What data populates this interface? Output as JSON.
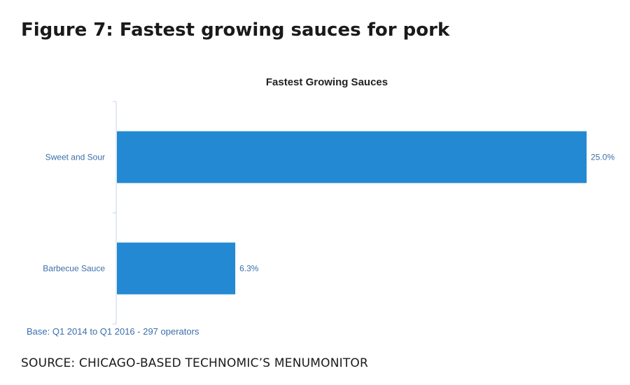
{
  "figure": {
    "title": "Figure 7: Fastest growing sauces for pork",
    "source": "SOURCE: CHICAGO-BASED TECHNOMIC’S MENUMONITOR"
  },
  "chart_data": {
    "type": "bar",
    "orientation": "horizontal",
    "title": "Fastest Growing Sauces",
    "categories": [
      "Sweet and Sour",
      "Barbecue Sauce"
    ],
    "values": [
      25.0,
      6.3
    ],
    "value_labels": [
      "25.0%",
      "6.3%"
    ],
    "xlim": [
      0,
      25
    ],
    "grid": false,
    "legend": "none",
    "note": "Base: Q1 2014 to Q1 2016 - 297 operators",
    "colors": {
      "bar": "#2389d2",
      "label": "#3b6fa8",
      "axis": "#c9d4e3"
    }
  }
}
